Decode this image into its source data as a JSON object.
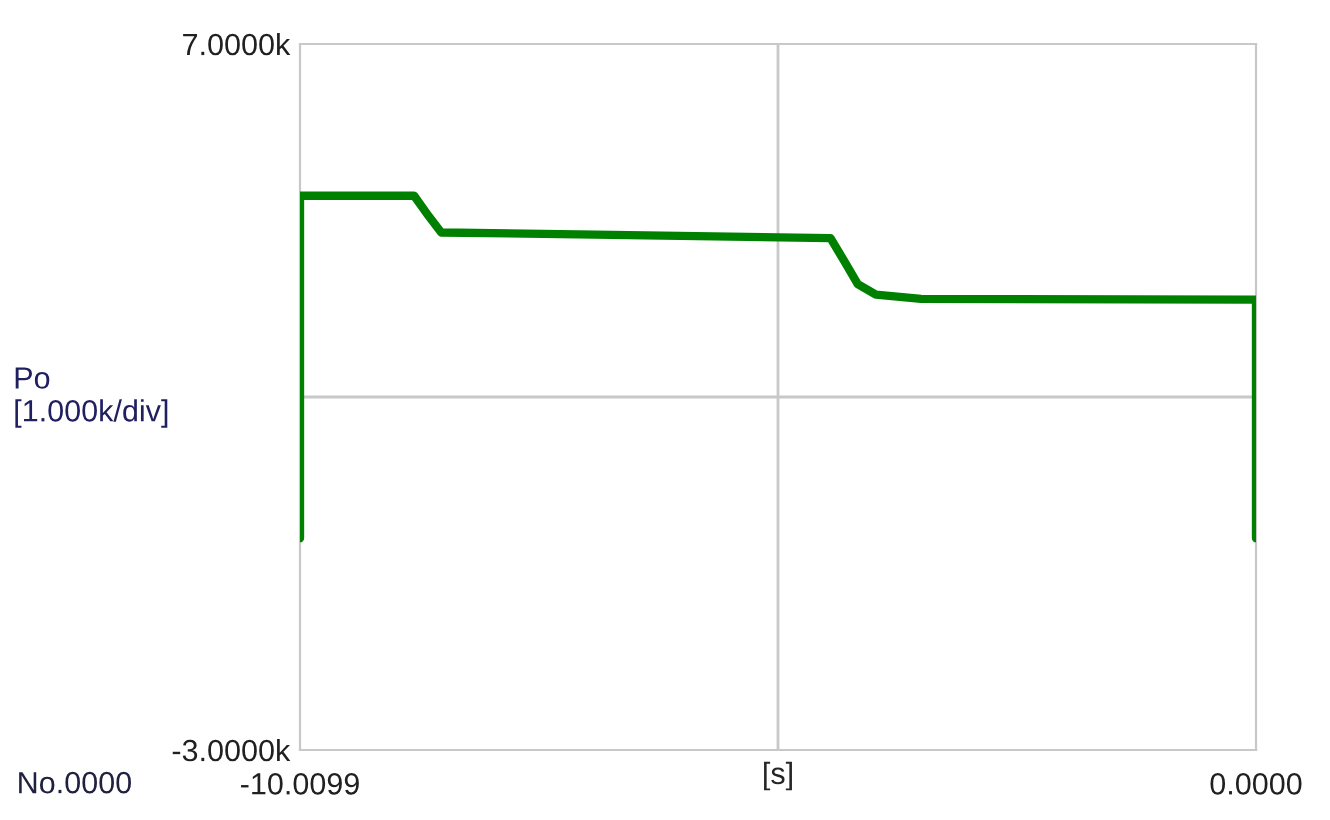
{
  "chart_data": {
    "type": "line",
    "ylabel": "Po\n[1.000k/div]",
    "xlabel": "[s]",
    "annotations": [
      "No.0000"
    ],
    "x": [
      -10.0099,
      -10.0099,
      -8.815,
      -8.683,
      -8.531,
      -6.92,
      -4.455,
      -4.3,
      -4.17,
      -3.98,
      -3.507,
      -0.019,
      0,
      0
    ],
    "series": [
      {
        "color": "#008000",
        "values": [
          0,
          4.85,
          4.85,
          4.6,
          4.33,
          4.3,
          4.25,
          3.9,
          3.6,
          3.45,
          3.39,
          3.38,
          3.38,
          0
        ]
      }
    ],
    "xlim": [
      -10.0099,
      0
    ],
    "xticks": [
      {
        "value": -10.0099,
        "label": "-10.0099"
      },
      {
        "value": 0,
        "label": "0.0000"
      }
    ],
    "ylim": [
      -3,
      7
    ],
    "yticks": [
      {
        "value": 7,
        "label": "7.0000k"
      },
      {
        "value": -3,
        "label": "-3.0000k"
      }
    ],
    "ref_lines": [
      {
        "axis": "x",
        "value": -5.00495,
        "color": "#c8c8c8"
      },
      {
        "axis": "y",
        "value": 2,
        "color": "#c8c8c8"
      }
    ],
    "grid": false,
    "legend": false,
    "line_style": "solid",
    "marker": "none"
  }
}
